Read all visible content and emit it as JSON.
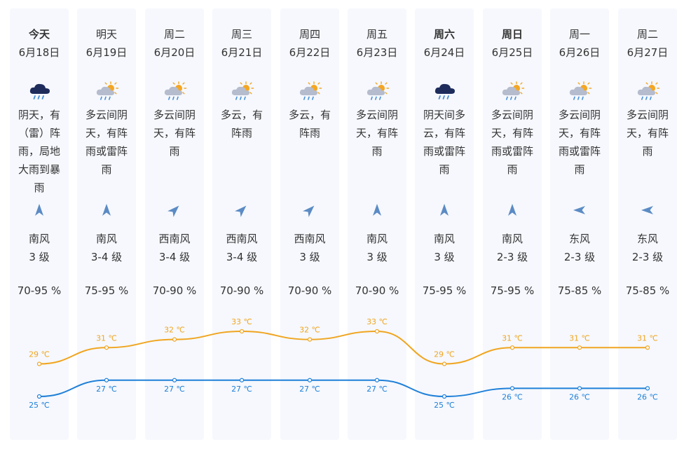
{
  "colors": {
    "column_bg": "#f6f8fd",
    "high_line": "#f0a520",
    "low_line": "#1f80d8",
    "arrow": "#5b8bc4",
    "text": "#333333"
  },
  "days": [
    {
      "weekday": "今天",
      "bold": true,
      "date": "6月18日",
      "icon": "thunder-rain-icon",
      "desc": "阴天，有（雷）阵雨，局地大雨到暴雨",
      "wind_arrow": "north-arrow-icon",
      "wind_dir": "南风",
      "wind_level": "3 级",
      "humidity": "70-95 %"
    },
    {
      "weekday": "明天",
      "bold": false,
      "date": "6月19日",
      "icon": "partly-cloudy-rain-icon",
      "desc": "多云间阴天，有阵雨或雷阵雨",
      "wind_arrow": "north-arrow-icon",
      "wind_dir": "南风",
      "wind_level": "3-4 级",
      "humidity": "75-95 %"
    },
    {
      "weekday": "周二",
      "bold": false,
      "date": "6月20日",
      "icon": "partly-cloudy-rain-icon",
      "desc": "多云间阴天，有阵雨",
      "wind_arrow": "northeast-arrow-icon",
      "wind_dir": "西南风",
      "wind_level": "3-4 级",
      "humidity": "70-90 %"
    },
    {
      "weekday": "周三",
      "bold": false,
      "date": "6月21日",
      "icon": "partly-cloudy-rain-icon",
      "desc": "多云，有阵雨",
      "wind_arrow": "northeast-arrow-icon",
      "wind_dir": "西南风",
      "wind_level": "3-4 级",
      "humidity": "70-90 %"
    },
    {
      "weekday": "周四",
      "bold": false,
      "date": "6月22日",
      "icon": "partly-cloudy-rain-icon",
      "desc": "多云，有阵雨",
      "wind_arrow": "northeast-arrow-icon",
      "wind_dir": "西南风",
      "wind_level": "3 级",
      "humidity": "70-90 %"
    },
    {
      "weekday": "周五",
      "bold": false,
      "date": "6月23日",
      "icon": "partly-cloudy-rain-icon",
      "desc": "多云间阴天，有阵雨",
      "wind_arrow": "north-arrow-icon",
      "wind_dir": "南风",
      "wind_level": "3 级",
      "humidity": "70-90 %"
    },
    {
      "weekday": "周六",
      "bold": true,
      "date": "6月24日",
      "icon": "thunder-rain-icon",
      "desc": "阴天间多云，有阵雨或雷阵雨",
      "wind_arrow": "north-arrow-icon",
      "wind_dir": "南风",
      "wind_level": "3 级",
      "humidity": "75-95 %"
    },
    {
      "weekday": "周日",
      "bold": true,
      "date": "6月25日",
      "icon": "partly-cloudy-rain-icon",
      "desc": "多云间阴天，有阵雨或雷阵雨",
      "wind_arrow": "north-arrow-icon",
      "wind_dir": "南风",
      "wind_level": "2-3 级",
      "humidity": "75-95 %"
    },
    {
      "weekday": "周一",
      "bold": false,
      "date": "6月26日",
      "icon": "partly-cloudy-rain-icon",
      "desc": "多云间阴天，有阵雨或雷阵雨",
      "wind_arrow": "west-arrow-icon",
      "wind_dir": "东风",
      "wind_level": "2-3 级",
      "humidity": "75-85 %"
    },
    {
      "weekday": "周二",
      "bold": false,
      "date": "6月27日",
      "icon": "partly-cloudy-rain-icon",
      "desc": "多云间阴天，有阵雨",
      "wind_arrow": "west-arrow-icon",
      "wind_dir": "东风",
      "wind_level": "2-3 级",
      "humidity": "75-85 %"
    }
  ],
  "chart_data": {
    "type": "line",
    "x": [
      "6月18日",
      "6月19日",
      "6月20日",
      "6月21日",
      "6月22日",
      "6月23日",
      "6月24日",
      "6月25日",
      "6月26日",
      "6月27日"
    ],
    "unit": "℃",
    "ylim": [
      25,
      33
    ],
    "grid": false,
    "series": [
      {
        "key": "high",
        "values": [
          29,
          31,
          32,
          33,
          32,
          33,
          29,
          31,
          31,
          31
        ],
        "labels": [
          "29 ℃",
          "31 ℃",
          "32 ℃",
          "33 ℃",
          "32 ℃",
          "33 ℃",
          "29 ℃",
          "31 ℃",
          "31 ℃",
          "31 ℃"
        ],
        "color": "#f0a520"
      },
      {
        "key": "low",
        "values": [
          25,
          27,
          27,
          27,
          27,
          27,
          25,
          26,
          26,
          26
        ],
        "labels": [
          "25 ℃",
          "27 ℃",
          "27 ℃",
          "27 ℃",
          "27 ℃",
          "27 ℃",
          "25 ℃",
          "26 ℃",
          "26 ℃",
          "26 ℃"
        ],
        "color": "#1f80d8"
      }
    ]
  }
}
